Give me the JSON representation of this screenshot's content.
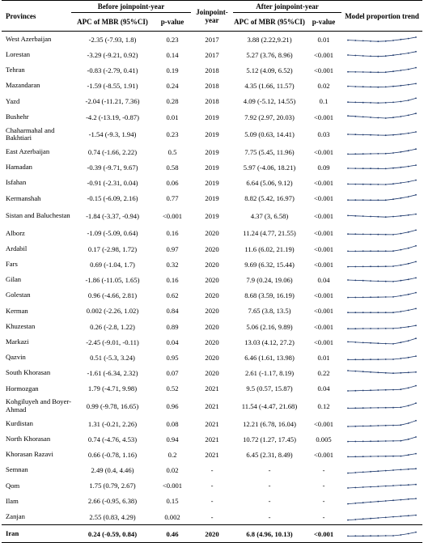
{
  "headers": {
    "provinces": "Provinces",
    "before": "Before joinpoint-year",
    "apc_before": "APC of MBR (95%CI)",
    "p_before": "p-value",
    "joinpoint_year": "Joinpoint-year",
    "after": "After joinpoint-year",
    "apc_after": "APC of MBR (95%CI)",
    "p_after": "p-value",
    "trend": "Model proportion trend"
  },
  "rows": [
    {
      "province": "West Azerbaijan",
      "apc_before": "-2.35 (-7.93, 1.8)",
      "p_before": "0.23",
      "year": "2017",
      "apc_after": "3.88 (2.22,9.21)",
      "p_after": "0.01",
      "trend": [
        0.45,
        0.42,
        0.38,
        0.34,
        0.32,
        0.35,
        0.42,
        0.52,
        0.62,
        0.75
      ]
    },
    {
      "province": "Lorestan",
      "apc_before": "-3.29 (-9.21, 0.92)",
      "p_before": "0.14",
      "year": "2017",
      "apc_after": "5.27 (3.76, 8.96)",
      "p_after": "<0.001",
      "trend": [
        0.5,
        0.46,
        0.42,
        0.38,
        0.36,
        0.4,
        0.48,
        0.58,
        0.7,
        0.85
      ]
    },
    {
      "province": "Tehran",
      "apc_before": "-0.83 (-2.79, 0.41)",
      "p_before": "0.19",
      "year": "2018",
      "apc_after": "5.12 (4.09, 6.52)",
      "p_after": "<0.001",
      "trend": [
        0.35,
        0.34,
        0.33,
        0.32,
        0.31,
        0.32,
        0.4,
        0.5,
        0.62,
        0.78
      ]
    },
    {
      "province": "Mazandaran",
      "apc_before": "-1.59 (-8.55, 1.91)",
      "p_before": "0.24",
      "year": "2018",
      "apc_after": "4.35 (1.66, 11.57)",
      "p_after": "0.02",
      "trend": [
        0.45,
        0.42,
        0.4,
        0.38,
        0.36,
        0.38,
        0.44,
        0.52,
        0.62,
        0.72
      ]
    },
    {
      "province": "Yazd",
      "apc_before": "-2.04 (-11.21, 7.36)",
      "p_before": "0.28",
      "year": "2018",
      "apc_after": "4.09 (-5.12, 14.55)",
      "p_after": "0.1",
      "trend": [
        0.4,
        0.38,
        0.36,
        0.34,
        0.32,
        0.34,
        0.38,
        0.46,
        0.58,
        0.8
      ]
    },
    {
      "province": "Bushehr",
      "apc_before": "-4.2 (-13.19, -0.87)",
      "p_before": "0.01",
      "year": "2019",
      "apc_after": "7.92 (2.97, 20.03)",
      "p_after": "<0.001",
      "trend": [
        0.65,
        0.6,
        0.55,
        0.5,
        0.46,
        0.42,
        0.48,
        0.58,
        0.72,
        0.9
      ]
    },
    {
      "province": "Chaharmahal and Bakhtiari",
      "apc_before": "-1.54 (-9.3, 1.94)",
      "p_before": "0.23",
      "year": "2019",
      "apc_after": "5.09 (0.63, 14.41)",
      "p_after": "0.03",
      "trend": [
        0.5,
        0.48,
        0.46,
        0.44,
        0.42,
        0.4,
        0.44,
        0.52,
        0.62,
        0.75
      ]
    },
    {
      "province": "East Azerbaijan",
      "apc_before": "0.74 (-1.66, 2.22)",
      "p_before": "0.5",
      "year": "2019",
      "apc_after": "7.75 (5.45, 11.96)",
      "p_after": "<0.001",
      "trend": [
        0.3,
        0.31,
        0.32,
        0.33,
        0.34,
        0.35,
        0.42,
        0.52,
        0.65,
        0.82
      ]
    },
    {
      "province": "Hamadan",
      "apc_before": "-0.39 (-9.71, 9.67)",
      "p_before": "0.58",
      "year": "2019",
      "apc_after": "5.97 (-4.06, 18.21)",
      "p_after": "0.09",
      "trend": [
        0.42,
        0.41,
        0.4,
        0.4,
        0.39,
        0.38,
        0.44,
        0.52,
        0.62,
        0.74
      ]
    },
    {
      "province": "Isfahan",
      "apc_before": "-0.91 (-2.31, 0.04)",
      "p_before": "0.06",
      "year": "2019",
      "apc_after": "6.64 (5.06, 9.12)",
      "p_after": "<0.001",
      "trend": [
        0.38,
        0.37,
        0.36,
        0.35,
        0.34,
        0.33,
        0.4,
        0.5,
        0.62,
        0.78
      ]
    },
    {
      "province": "Kermanshah",
      "apc_before": "-0.15 (-6.09, 2.16)",
      "p_before": "0.77",
      "year": "2019",
      "apc_after": "8.82 (5.42, 16.97)",
      "p_after": "<0.001",
      "trend": [
        0.32,
        0.32,
        0.32,
        0.31,
        0.31,
        0.31,
        0.4,
        0.52,
        0.66,
        0.85
      ]
    },
    {
      "province": "Sistan and Baluchestan",
      "apc_before": "-1.84 (-3.37, -0.94)",
      "p_before": "<0.001",
      "year": "2019",
      "apc_after": "4.37 (3, 6.58)",
      "p_after": "<0.001",
      "trend": [
        0.55,
        0.52,
        0.49,
        0.46,
        0.43,
        0.4,
        0.45,
        0.52,
        0.6,
        0.7
      ]
    },
    {
      "province": "Alborz",
      "apc_before": "-1.09 (-5.09, 0.64)",
      "p_before": "0.16",
      "year": "2020",
      "apc_after": "11.24 (4.77, 21.55)",
      "p_after": "<0.001",
      "trend": [
        0.4,
        0.39,
        0.38,
        0.37,
        0.36,
        0.35,
        0.34,
        0.45,
        0.6,
        0.8
      ]
    },
    {
      "province": "Ardabil",
      "apc_before": "0.17 (-2.98, 1.72)",
      "p_before": "0.97",
      "year": "2020",
      "apc_after": "11.6 (6.02, 21.19)",
      "p_after": "<0.001",
      "trend": [
        0.3,
        0.3,
        0.31,
        0.31,
        0.31,
        0.31,
        0.32,
        0.45,
        0.62,
        0.85
      ]
    },
    {
      "province": "Fars",
      "apc_before": "0.69 (-1.04, 1.7)",
      "p_before": "0.32",
      "year": "2020",
      "apc_after": "9.69 (6.32, 15.44)",
      "p_after": "<0.001",
      "trend": [
        0.28,
        0.29,
        0.3,
        0.31,
        0.31,
        0.32,
        0.33,
        0.45,
        0.6,
        0.8
      ]
    },
    {
      "province": "Gilan",
      "apc_before": "-1.86 (-11.05, 1.65)",
      "p_before": "0.16",
      "year": "2020",
      "apc_after": "7.9 (0.24, 19.06)",
      "p_after": "0.04",
      "trend": [
        0.5,
        0.47,
        0.44,
        0.41,
        0.38,
        0.36,
        0.34,
        0.44,
        0.56,
        0.72
      ]
    },
    {
      "province": "Golestan",
      "apc_before": "0.96 (-4.66, 2.81)",
      "p_before": "0.62",
      "year": "2020",
      "apc_after": "8.68 (3.59, 16.19)",
      "p_after": "<0.001",
      "trend": [
        0.28,
        0.29,
        0.3,
        0.31,
        0.32,
        0.33,
        0.34,
        0.46,
        0.6,
        0.78
      ]
    },
    {
      "province": "Kerman",
      "apc_before": "0.002 (-2.26, 1.02)",
      "p_before": "0.84",
      "year": "2020",
      "apc_after": "7.65 (3.8, 13.5)",
      "p_after": "<0.001",
      "trend": [
        0.32,
        0.32,
        0.32,
        0.32,
        0.32,
        0.32,
        0.32,
        0.42,
        0.55,
        0.72
      ]
    },
    {
      "province": "Khuzestan",
      "apc_before": "0.26 (-2.8, 1.22)",
      "p_before": "0.89",
      "year": "2020",
      "apc_after": "5.06 (2.16, 9.89)",
      "p_after": "<0.001",
      "trend": [
        0.32,
        0.32,
        0.33,
        0.33,
        0.33,
        0.34,
        0.34,
        0.42,
        0.52,
        0.64
      ]
    },
    {
      "province": "Markazi",
      "apc_before": "-2.45 (-9.01, -0.11)",
      "p_before": "0.04",
      "year": "2020",
      "apc_after": "13.03 (4.12, 27.2)",
      "p_after": "<0.001",
      "trend": [
        0.55,
        0.51,
        0.47,
        0.43,
        0.4,
        0.37,
        0.34,
        0.48,
        0.66,
        0.9
      ]
    },
    {
      "province": "Qazvin",
      "apc_before": "0.51 (-5.3, 3.24)",
      "p_before": "0.95",
      "year": "2020",
      "apc_after": "6.46 (1.61, 13.98)",
      "p_after": "0.01",
      "trend": [
        0.3,
        0.31,
        0.31,
        0.32,
        0.32,
        0.33,
        0.33,
        0.42,
        0.52,
        0.66
      ]
    },
    {
      "province": "South Khorasan",
      "apc_before": "-1.61 (-6.34, 2.32)",
      "p_before": "0.07",
      "year": "2020",
      "apc_after": "2.61 (-1.17, 8.19)",
      "p_after": "0.22",
      "trend": [
        0.75,
        0.7,
        0.65,
        0.6,
        0.56,
        0.52,
        0.48,
        0.52,
        0.56,
        0.6
      ]
    },
    {
      "province": "Hormozgan",
      "apc_before": "1.79 (-4.71, 9.98)",
      "p_before": "0.52",
      "year": "2021",
      "apc_after": "9.5 (0.57, 15.87)",
      "p_after": "0.04",
      "trend": [
        0.25,
        0.27,
        0.29,
        0.31,
        0.33,
        0.35,
        0.37,
        0.4,
        0.55,
        0.78
      ]
    },
    {
      "province": "Kohgiluyeh and Boyer-Ahmad",
      "apc_before": "0.99 (-9.78, 16.65)",
      "p_before": "0.96",
      "year": "2021",
      "apc_after": "11.54 (-4.47, 21.68)",
      "p_after": "0.12",
      "trend": [
        0.3,
        0.31,
        0.32,
        0.33,
        0.34,
        0.35,
        0.36,
        0.38,
        0.55,
        0.82
      ]
    },
    {
      "province": "Kurdistan",
      "apc_before": "1.31 (-0.21, 2.26)",
      "p_before": "0.08",
      "year": "2021",
      "apc_after": "12.21 (6.78, 16.04)",
      "p_after": "<0.001",
      "trend": [
        0.25,
        0.27,
        0.29,
        0.31,
        0.33,
        0.35,
        0.37,
        0.4,
        0.58,
        0.85
      ]
    },
    {
      "province": "North Khorasan",
      "apc_before": "0.74 (-4.76, 4.53)",
      "p_before": "0.94",
      "year": "2021",
      "apc_after": "10.72 (1.27, 17.45)",
      "p_after": "0.005",
      "trend": [
        0.28,
        0.29,
        0.3,
        0.31,
        0.32,
        0.33,
        0.34,
        0.36,
        0.52,
        0.75
      ]
    },
    {
      "province": "Khorasan Razavi",
      "apc_before": "0.66 (-0.78, 1.16)",
      "p_before": "0.2",
      "year": "2021",
      "apc_after": "6.45 (2.31, 8.49)",
      "p_after": "<0.001",
      "trend": [
        0.3,
        0.31,
        0.32,
        0.33,
        0.34,
        0.35,
        0.36,
        0.37,
        0.48,
        0.62
      ]
    },
    {
      "province": "Semnan",
      "apc_before": "2.49 (0.4, 4.46)",
      "p_before": "0.02",
      "year": "-",
      "apc_after": "-",
      "p_after": "-",
      "trend": [
        0.2,
        0.25,
        0.3,
        0.35,
        0.4,
        0.45,
        0.5,
        0.55,
        0.6,
        0.65
      ]
    },
    {
      "province": "Qom",
      "apc_before": "1.75 (0.79, 2.67)",
      "p_before": "<0.001",
      "year": "-",
      "apc_after": "-",
      "p_after": "-",
      "trend": [
        0.25,
        0.29,
        0.33,
        0.37,
        0.41,
        0.45,
        0.49,
        0.53,
        0.57,
        0.61
      ]
    },
    {
      "province": "Ilam",
      "apc_before": "2.66 (-0.95, 6.38)",
      "p_before": "0.15",
      "year": "-",
      "apc_after": "-",
      "p_after": "-",
      "trend": [
        0.2,
        0.26,
        0.32,
        0.38,
        0.44,
        0.5,
        0.56,
        0.62,
        0.68,
        0.74
      ]
    },
    {
      "province": "Zanjan",
      "apc_before": "2.55 (0.83, 4.29)",
      "p_before": "0.002",
      "year": "-",
      "apc_after": "-",
      "p_after": "-",
      "trend": [
        0.2,
        0.25,
        0.31,
        0.36,
        0.42,
        0.47,
        0.53,
        0.58,
        0.64,
        0.7
      ]
    }
  ],
  "total": {
    "province": "Iran",
    "apc_before": "0.24 (-0.59, 0.84)",
    "p_before": "0.46",
    "year": "2020",
    "apc_after": "6.8 (4.96, 10.13)",
    "p_after": "<0.001",
    "trend": [
      0.3,
      0.31,
      0.31,
      0.32,
      0.32,
      0.33,
      0.33,
      0.42,
      0.54,
      0.7
    ]
  },
  "colors": {
    "trend_line": "#1f3a6e"
  }
}
